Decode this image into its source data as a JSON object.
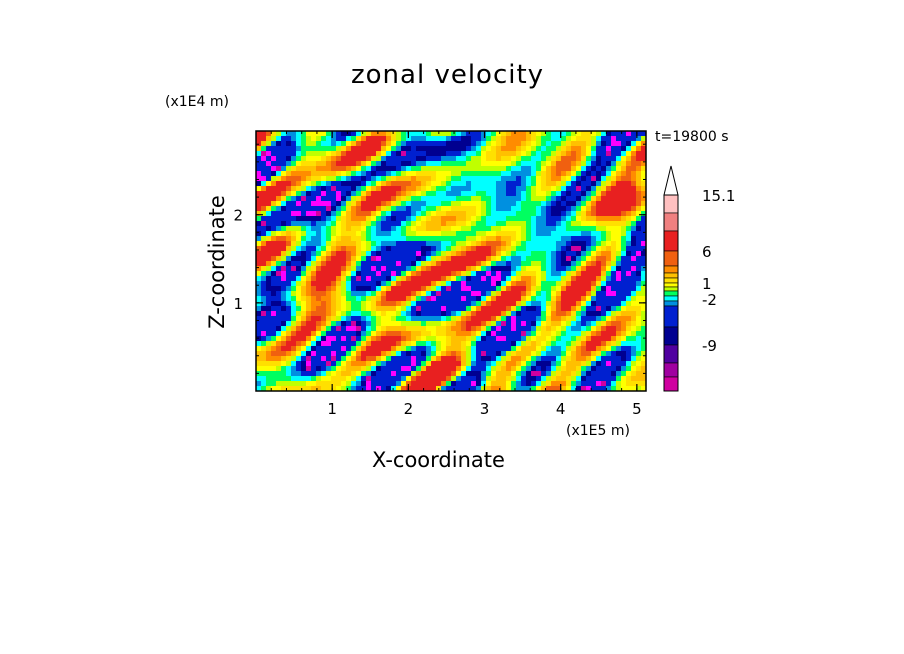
{
  "chart_data": {
    "type": "heatmap",
    "title": "zonal velocity",
    "xlabel": "X-coordinate",
    "ylabel": "Z-coordinate",
    "x_unit": "(x1E5 m)",
    "y_unit": "(x1E4 m)",
    "time_label": "t=19800 s",
    "xlim": [
      0,
      5.12
    ],
    "ylim": [
      0,
      2.95
    ],
    "x_ticks": [
      "1",
      "2",
      "3",
      "4",
      "5"
    ],
    "x_tick_values": [
      1,
      2,
      3,
      4,
      5
    ],
    "y_ticks": [
      "1",
      "2"
    ],
    "y_tick_values": [
      1,
      2
    ],
    "colorbar": {
      "labels": [
        "15.1",
        "6",
        "1",
        "-2",
        "-9"
      ],
      "label_values": [
        15.1,
        6,
        1,
        -2,
        -9
      ],
      "colors": [
        "#ffc0c0",
        "#f08080",
        "#e82020",
        "#f06010",
        "#ff8c00",
        "#ffc000",
        "#ffe000",
        "#ffff00",
        "#c0ff00",
        "#00ff60",
        "#00ffff",
        "#0090e0",
        "#0020d0",
        "#000090",
        "#5000a0",
        "#a000a0",
        "#d000a0",
        "#ff00ff"
      ]
    }
  }
}
